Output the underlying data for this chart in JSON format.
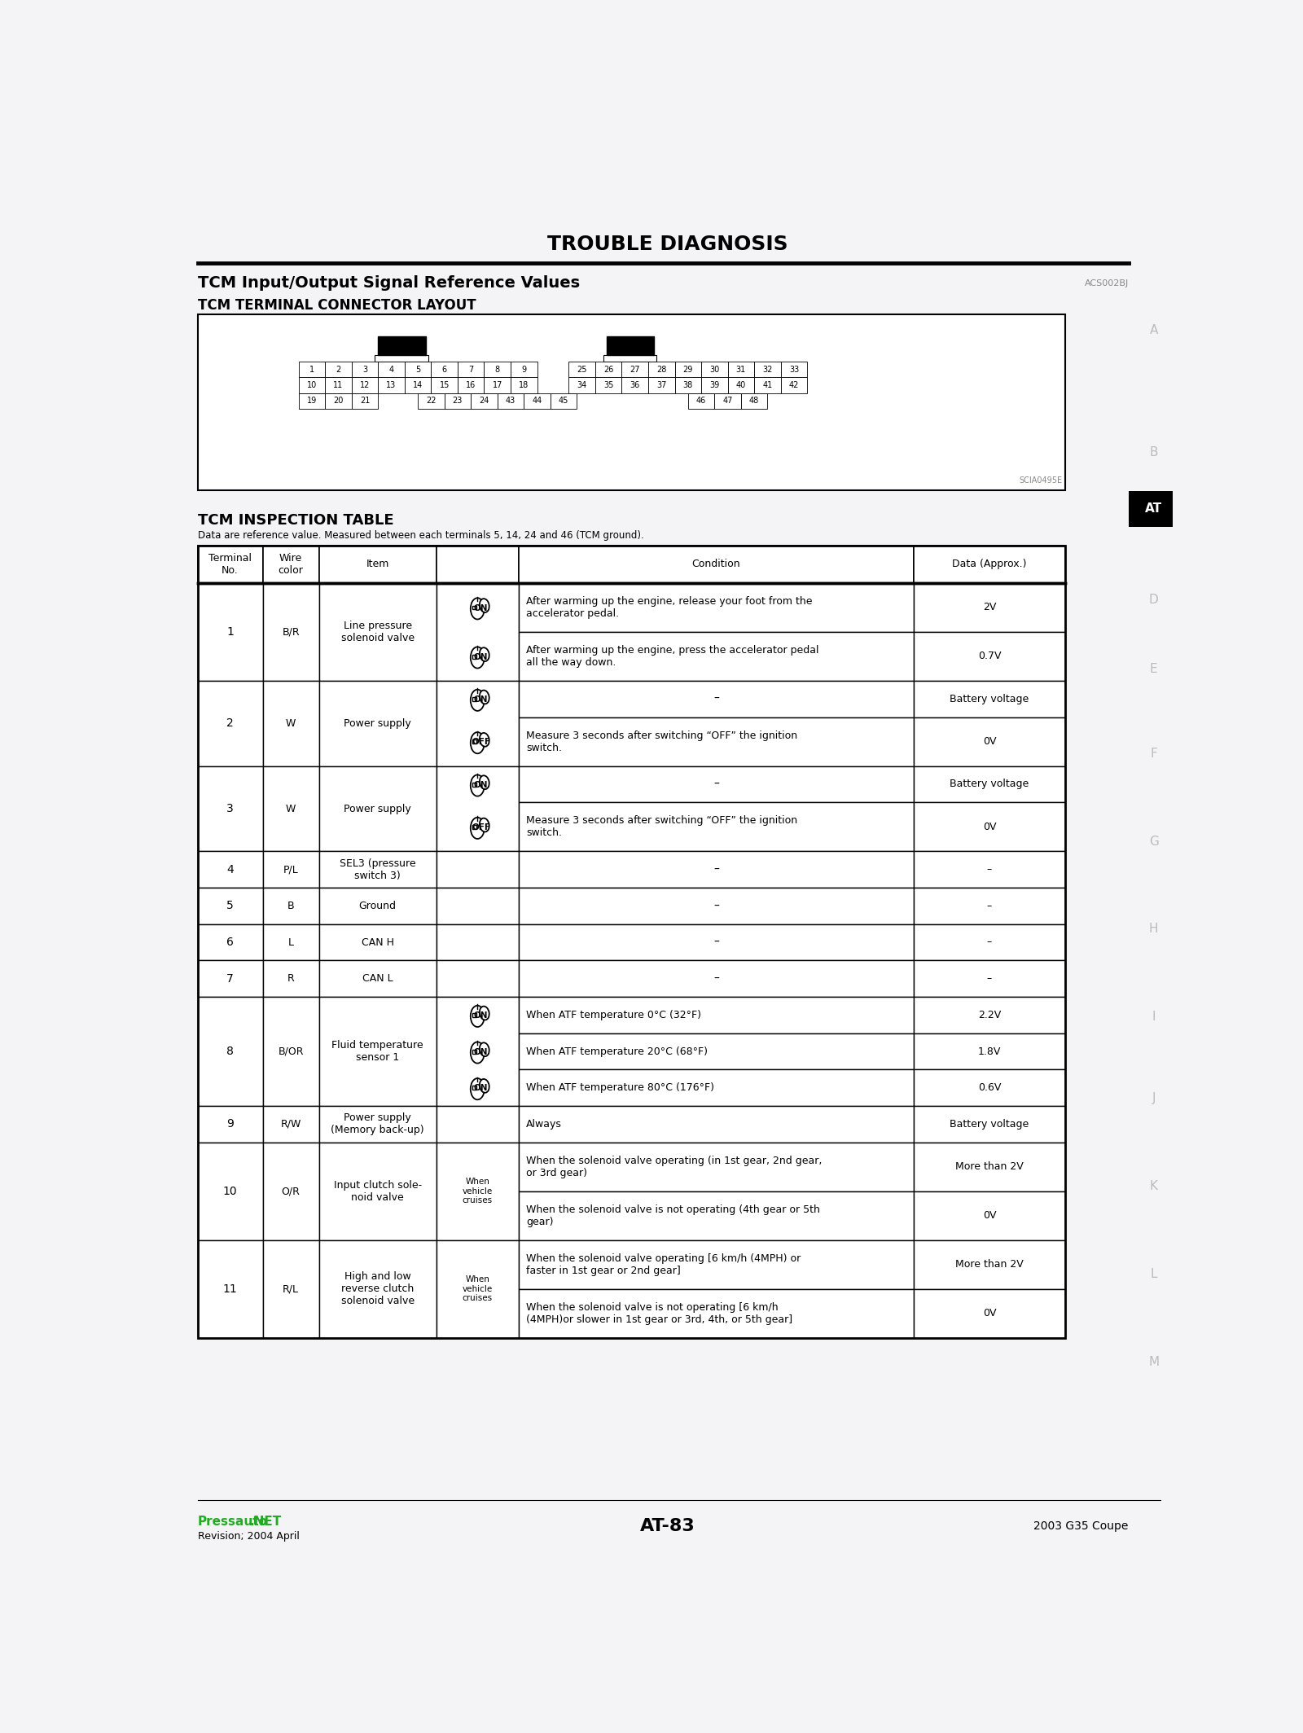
{
  "title": "TROUBLE DIAGNOSIS",
  "section_title": "TCM Input/Output Signal Reference Values",
  "section_code": "ACS002BJ",
  "subsection_title": "TCM TERMINAL CONNECTOR LAYOUT",
  "connector_note": "SCIA0495E",
  "table_title": "TCM INSPECTION TABLE",
  "table_subtitle": "Data are reference value. Measured between each terminals 5, 14, 24 and 46 (TCM ground).",
  "col_headers": [
    "Terminal\nNo.",
    "Wire\ncolor",
    "Item",
    "Condition",
    "Data (Approx.)"
  ],
  "sidebar_letters": [
    "A",
    "B",
    "AT",
    "D",
    "E",
    "F",
    "G",
    "H",
    "I",
    "J",
    "K",
    "L",
    "M"
  ],
  "rows": [
    {
      "terminal": "1",
      "wire": "B/R",
      "item": "Line pressure\nsolenoid valve",
      "icon_type": "ON",
      "sub_rows": [
        {
          "icon": "ON",
          "condition": "After warming up the engine, release your foot from the\naccelerator pedal.",
          "data": "2V"
        },
        {
          "icon": "ON",
          "condition": "After warming up the engine, press the accelerator pedal\nall the way down.",
          "data": "0.7V"
        }
      ]
    },
    {
      "terminal": "2",
      "wire": "W",
      "item": "Power supply",
      "icon_type": "ON_OFF",
      "sub_rows": [
        {
          "icon": "ON",
          "condition": "–",
          "data": "Battery voltage"
        },
        {
          "icon": "OFF",
          "condition": "Measure 3 seconds after switching “OFF” the ignition\nswitch.",
          "data": "0V"
        }
      ]
    },
    {
      "terminal": "3",
      "wire": "W",
      "item": "Power supply",
      "icon_type": "ON_OFF",
      "sub_rows": [
        {
          "icon": "ON",
          "condition": "–",
          "data": "Battery voltage"
        },
        {
          "icon": "OFF",
          "condition": "Measure 3 seconds after switching “OFF” the ignition\nswitch.",
          "data": "0V"
        }
      ]
    },
    {
      "terminal": "4",
      "wire": "P/L",
      "item": "SEL3 (pressure\nswitch 3)",
      "icon_type": "NONE",
      "sub_rows": [
        {
          "icon": "NONE",
          "condition": "–",
          "data": "–"
        }
      ]
    },
    {
      "terminal": "5",
      "wire": "B",
      "item": "Ground",
      "icon_type": "NONE",
      "sub_rows": [
        {
          "icon": "NONE",
          "condition": "–",
          "data": "–"
        }
      ]
    },
    {
      "terminal": "6",
      "wire": "L",
      "item": "CAN H",
      "icon_type": "NONE",
      "sub_rows": [
        {
          "icon": "NONE",
          "condition": "–",
          "data": "–"
        }
      ]
    },
    {
      "terminal": "7",
      "wire": "R",
      "item": "CAN L",
      "icon_type": "NONE",
      "sub_rows": [
        {
          "icon": "NONE",
          "condition": "–",
          "data": "–"
        }
      ]
    },
    {
      "terminal": "8",
      "wire": "B/OR",
      "item": "Fluid temperature\nsensor 1",
      "icon_type": "ON",
      "sub_rows": [
        {
          "icon": "ON",
          "condition": "When ATF temperature 0°C (32°F)",
          "data": "2.2V"
        },
        {
          "icon": "ON",
          "condition": "When ATF temperature 20°C (68°F)",
          "data": "1.8V"
        },
        {
          "icon": "ON",
          "condition": "When ATF temperature 80°C (176°F)",
          "data": "0.6V"
        }
      ]
    },
    {
      "terminal": "9",
      "wire": "R/W",
      "item": "Power supply\n(Memory back-up)",
      "icon_type": "NONE",
      "sub_rows": [
        {
          "icon": "NONE",
          "condition": "Always",
          "data": "Battery voltage"
        }
      ]
    },
    {
      "terminal": "10",
      "wire": "O/R",
      "item": "Input clutch sole-\nnoid valve",
      "icon_type": "WHEN",
      "sub_rows": [
        {
          "icon": "NONE",
          "condition": "When the solenoid valve operating (in 1st gear, 2nd gear,\nor 3rd gear)",
          "data": "More than 2V"
        },
        {
          "icon": "NONE",
          "condition": "When the solenoid valve is not operating (4th gear or 5th\ngear)",
          "data": "0V"
        }
      ]
    },
    {
      "terminal": "11",
      "wire": "R/L",
      "item": "High and low\nreverse clutch\nsolenoid valve",
      "icon_type": "WHEN",
      "sub_rows": [
        {
          "icon": "NONE",
          "condition": "When the solenoid valve operating [6 km/h (4MPH) or\nfaster in 1st gear or 2nd gear]",
          "data": "More than 2V"
        },
        {
          "icon": "NONE",
          "condition": "When the solenoid valve is not operating [6 km/h\n(4MPH)or slower in 1st gear or 3rd, 4th, or 5th gear]",
          "data": "0V"
        }
      ]
    }
  ],
  "footer_left_green": "Pressauto",
  "footer_left_green2": ".NET",
  "footer_left_black": "Revision; 2004 April",
  "footer_center": "AT-83",
  "footer_right": "2003 G35 Coupe",
  "bg_color": "#f4f4f6"
}
